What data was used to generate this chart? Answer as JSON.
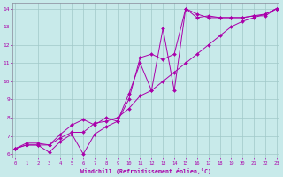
{
  "xlabel": "Windchill (Refroidissement éolien,°C)",
  "bg_color": "#c8eaea",
  "grid_color": "#a0c8c8",
  "line_color": "#aa00aa",
  "xmin": 0,
  "xmax": 23,
  "ymin": 6,
  "ymax": 14,
  "line1_x": [
    0,
    1,
    2,
    3,
    4,
    5,
    6,
    7,
    8,
    9,
    10,
    11,
    12,
    13,
    14,
    15,
    16,
    17,
    18,
    19,
    20,
    21,
    22,
    23
  ],
  "line1_y": [
    6.3,
    6.6,
    6.6,
    6.5,
    6.9,
    7.2,
    7.2,
    7.7,
    7.8,
    8.0,
    8.5,
    9.2,
    9.5,
    10.0,
    10.5,
    11.0,
    11.5,
    12.0,
    12.5,
    13.0,
    13.3,
    13.5,
    13.7,
    14.0
  ],
  "line2_x": [
    0,
    1,
    2,
    3,
    4,
    5,
    6,
    7,
    8,
    9,
    10,
    11,
    12,
    13,
    14,
    15,
    16,
    17,
    18,
    19,
    20,
    21,
    22,
    23
  ],
  "line2_y": [
    6.3,
    6.5,
    6.5,
    6.1,
    6.7,
    7.1,
    6.0,
    7.1,
    7.5,
    7.8,
    9.0,
    11.3,
    11.5,
    11.2,
    11.5,
    14.0,
    13.7,
    13.5,
    13.5,
    13.5,
    13.5,
    13.6,
    13.7,
    14.0
  ],
  "line3_x": [
    0,
    1,
    2,
    3,
    4,
    5,
    6,
    7,
    8,
    9,
    10,
    11,
    12,
    13,
    14,
    15,
    16,
    17,
    18,
    19,
    20,
    21,
    22,
    23
  ],
  "line3_y": [
    6.3,
    6.5,
    6.5,
    6.5,
    7.1,
    7.6,
    7.9,
    7.6,
    8.0,
    7.8,
    9.3,
    11.0,
    9.5,
    12.9,
    9.5,
    14.0,
    13.5,
    13.6,
    13.5,
    13.5,
    13.5,
    13.6,
    13.6,
    14.0
  ]
}
